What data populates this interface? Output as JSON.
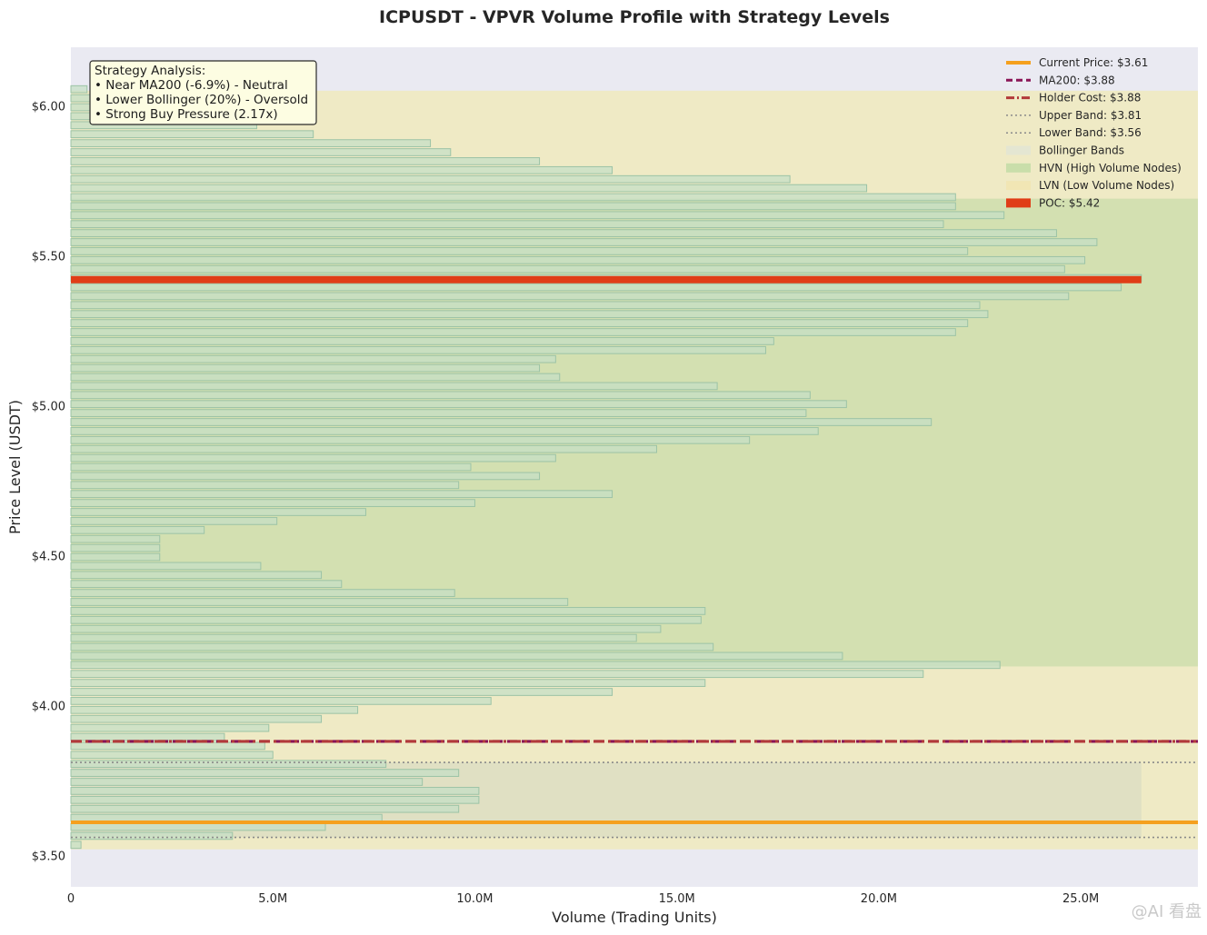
{
  "chart_data": {
    "type": "bar",
    "orientation": "horizontal",
    "title": "ICPUSDT - VPVR Volume Profile with Strategy Levels",
    "xlabel": "Volume (Trading Units)",
    "ylabel": "Price Level (USDT)",
    "xlim": [
      0,
      27900000
    ],
    "ylim": [
      3.395,
      6.195
    ],
    "xticks": [
      {
        "value": 0,
        "label": "0"
      },
      {
        "value": 5000000,
        "label": "5.0M"
      },
      {
        "value": 10000000,
        "label": "10.0M"
      },
      {
        "value": 15000000,
        "label": "15.0M"
      },
      {
        "value": 20000000,
        "label": "20.0M"
      },
      {
        "value": 25000000,
        "label": "25.0M"
      }
    ],
    "yticks": [
      {
        "value": 6.0,
        "label": "$6.00"
      },
      {
        "value": 5.5,
        "label": "$5.50"
      },
      {
        "value": 5.0,
        "label": "$5.00"
      },
      {
        "value": 4.5,
        "label": "$4.50"
      },
      {
        "value": 4.0,
        "label": "$4.00"
      },
      {
        "value": 3.5,
        "label": "$3.50"
      }
    ],
    "bin_start": 3.52,
    "bin_step": 0.03,
    "volume_bins": [
      {
        "price": 3.535,
        "volume": 250000
      },
      {
        "price": 3.565,
        "volume": 4000000
      },
      {
        "price": 3.595,
        "volume": 6300000
      },
      {
        "price": 3.625,
        "volume": 7700000
      },
      {
        "price": 3.655,
        "volume": 9600000
      },
      {
        "price": 3.685,
        "volume": 10100000
      },
      {
        "price": 3.715,
        "volume": 10100000
      },
      {
        "price": 3.745,
        "volume": 8700000
      },
      {
        "price": 3.775,
        "volume": 9600000
      },
      {
        "price": 3.805,
        "volume": 7800000
      },
      {
        "price": 3.835,
        "volume": 5000000
      },
      {
        "price": 3.865,
        "volume": 4800000
      },
      {
        "price": 3.895,
        "volume": 3800000
      },
      {
        "price": 3.925,
        "volume": 4900000
      },
      {
        "price": 3.955,
        "volume": 6200000
      },
      {
        "price": 3.985,
        "volume": 7100000
      },
      {
        "price": 4.015,
        "volume": 10400000
      },
      {
        "price": 4.045,
        "volume": 13400000
      },
      {
        "price": 4.075,
        "volume": 15700000
      },
      {
        "price": 4.105,
        "volume": 21100000
      },
      {
        "price": 4.135,
        "volume": 23000000
      },
      {
        "price": 4.165,
        "volume": 19100000
      },
      {
        "price": 4.195,
        "volume": 15900000
      },
      {
        "price": 4.225,
        "volume": 14000000
      },
      {
        "price": 4.255,
        "volume": 14600000
      },
      {
        "price": 4.285,
        "volume": 15600000
      },
      {
        "price": 4.315,
        "volume": 15700000
      },
      {
        "price": 4.345,
        "volume": 12300000
      },
      {
        "price": 4.375,
        "volume": 9500000
      },
      {
        "price": 4.405,
        "volume": 6700000
      },
      {
        "price": 4.435,
        "volume": 6200000
      },
      {
        "price": 4.465,
        "volume": 4700000
      },
      {
        "price": 4.495,
        "volume": 2200000
      },
      {
        "price": 4.525,
        "volume": 2200000
      },
      {
        "price": 4.555,
        "volume": 2200000
      },
      {
        "price": 4.585,
        "volume": 3300000
      },
      {
        "price": 4.615,
        "volume": 5100000
      },
      {
        "price": 4.645,
        "volume": 7300000
      },
      {
        "price": 4.675,
        "volume": 10000000
      },
      {
        "price": 4.705,
        "volume": 13400000
      },
      {
        "price": 4.735,
        "volume": 9600000
      },
      {
        "price": 4.765,
        "volume": 11600000
      },
      {
        "price": 4.795,
        "volume": 9900000
      },
      {
        "price": 4.825,
        "volume": 12000000
      },
      {
        "price": 4.855,
        "volume": 14500000
      },
      {
        "price": 4.885,
        "volume": 16800000
      },
      {
        "price": 4.915,
        "volume": 18500000
      },
      {
        "price": 4.945,
        "volume": 21300000
      },
      {
        "price": 4.975,
        "volume": 18200000
      },
      {
        "price": 5.005,
        "volume": 19200000
      },
      {
        "price": 5.035,
        "volume": 18300000
      },
      {
        "price": 5.065,
        "volume": 16000000
      },
      {
        "price": 5.095,
        "volume": 12100000
      },
      {
        "price": 5.125,
        "volume": 11600000
      },
      {
        "price": 5.155,
        "volume": 12000000
      },
      {
        "price": 5.185,
        "volume": 17200000
      },
      {
        "price": 5.215,
        "volume": 17400000
      },
      {
        "price": 5.245,
        "volume": 21900000
      },
      {
        "price": 5.275,
        "volume": 22200000
      },
      {
        "price": 5.305,
        "volume": 22700000
      },
      {
        "price": 5.335,
        "volume": 22500000
      },
      {
        "price": 5.365,
        "volume": 24700000
      },
      {
        "price": 5.395,
        "volume": 26000000
      },
      {
        "price": 5.425,
        "volume": 26500000
      },
      {
        "price": 5.455,
        "volume": 24600000
      },
      {
        "price": 5.485,
        "volume": 25100000
      },
      {
        "price": 5.515,
        "volume": 22200000
      },
      {
        "price": 5.545,
        "volume": 25400000
      },
      {
        "price": 5.575,
        "volume": 24400000
      },
      {
        "price": 5.605,
        "volume": 21600000
      },
      {
        "price": 5.635,
        "volume": 23100000
      },
      {
        "price": 5.665,
        "volume": 21900000
      },
      {
        "price": 5.695,
        "volume": 21900000
      },
      {
        "price": 5.725,
        "volume": 19700000
      },
      {
        "price": 5.755,
        "volume": 17800000
      },
      {
        "price": 5.785,
        "volume": 13400000
      },
      {
        "price": 5.815,
        "volume": 11600000
      },
      {
        "price": 5.845,
        "volume": 9400000
      },
      {
        "price": 5.875,
        "volume": 8900000
      },
      {
        "price": 5.905,
        "volume": 6000000
      },
      {
        "price": 5.935,
        "volume": 4600000
      },
      {
        "price": 5.965,
        "volume": 3500000
      },
      {
        "price": 5.995,
        "volume": 1800000
      },
      {
        "price": 6.025,
        "volume": 900000
      },
      {
        "price": 6.055,
        "volume": 400000
      }
    ],
    "zones": [
      {
        "name": "LVN (Low Volume Nodes)",
        "ymin": 3.52,
        "ymax": 6.05,
        "color": "#efeac0"
      },
      {
        "name": "HVN (High Volume Nodes)",
        "ymin": 4.13,
        "ymax": 5.69,
        "color": "#cfdfae"
      },
      {
        "name": "Bollinger Bands",
        "ymin": 3.56,
        "ymax": 3.81,
        "xmax": 26500000,
        "color": "#dedfc2"
      }
    ],
    "levels": [
      {
        "name": "Current Price: $3.61",
        "value": 3.61,
        "color": "#f5a01e",
        "style": "solid"
      },
      {
        "name": "MA200: $3.88",
        "value": 3.88,
        "color": "#8a1456",
        "style": "dashed"
      },
      {
        "name": "Holder Cost: $3.88",
        "value": 3.88,
        "color": "#b23a3a",
        "style": "dashdot"
      },
      {
        "name": "Upper Band: $3.81",
        "value": 3.81,
        "color": "#8a8a8a",
        "style": "dotted"
      },
      {
        "name": "Lower Band: $3.56",
        "value": 3.56,
        "color": "#8a8a8a",
        "style": "dotted"
      }
    ],
    "poc": {
      "label": "POC: $5.42",
      "price": 5.42,
      "volume": 26500000,
      "color": "#e03d17"
    },
    "legend": {
      "location": "top-right",
      "entries": [
        {
          "label": "Current Price: $3.61",
          "kind": "line",
          "color": "#f5a01e",
          "style": "solid"
        },
        {
          "label": "MA200: $3.88",
          "kind": "line",
          "color": "#8a1456",
          "style": "dashed"
        },
        {
          "label": "Holder Cost: $3.88",
          "kind": "line",
          "color": "#b23a3a",
          "style": "dashdot"
        },
        {
          "label": "Upper Band: $3.81",
          "kind": "line",
          "color": "#8a8a8a",
          "style": "dotted"
        },
        {
          "label": "Lower Band: $3.56",
          "kind": "line",
          "color": "#8a8a8a",
          "style": "dotted"
        },
        {
          "label": "Bollinger Bands",
          "kind": "patch",
          "color": "#e4e6d2"
        },
        {
          "label": "HVN (High Volume Nodes)",
          "kind": "patch",
          "color": "#c9deaa"
        },
        {
          "label": "LVN (Low Volume Nodes)",
          "kind": "patch",
          "color": "#f1e6b4"
        },
        {
          "label": "POC: $5.42",
          "kind": "patch",
          "color": "#e03d17"
        }
      ]
    },
    "annotation": {
      "lines": [
        "Strategy Analysis:",
        "• Near MA200 (-6.9%) - Neutral",
        "• Lower Bollinger (20%) - Oversold",
        "• Strong Buy Pressure (2.17x)"
      ]
    },
    "watermark": "@AI 看盘"
  },
  "colors": {
    "plot_bg": "#eaeaf2",
    "bar_fill": "#c6dfc6",
    "bar_stroke": "#9cc3a6"
  }
}
